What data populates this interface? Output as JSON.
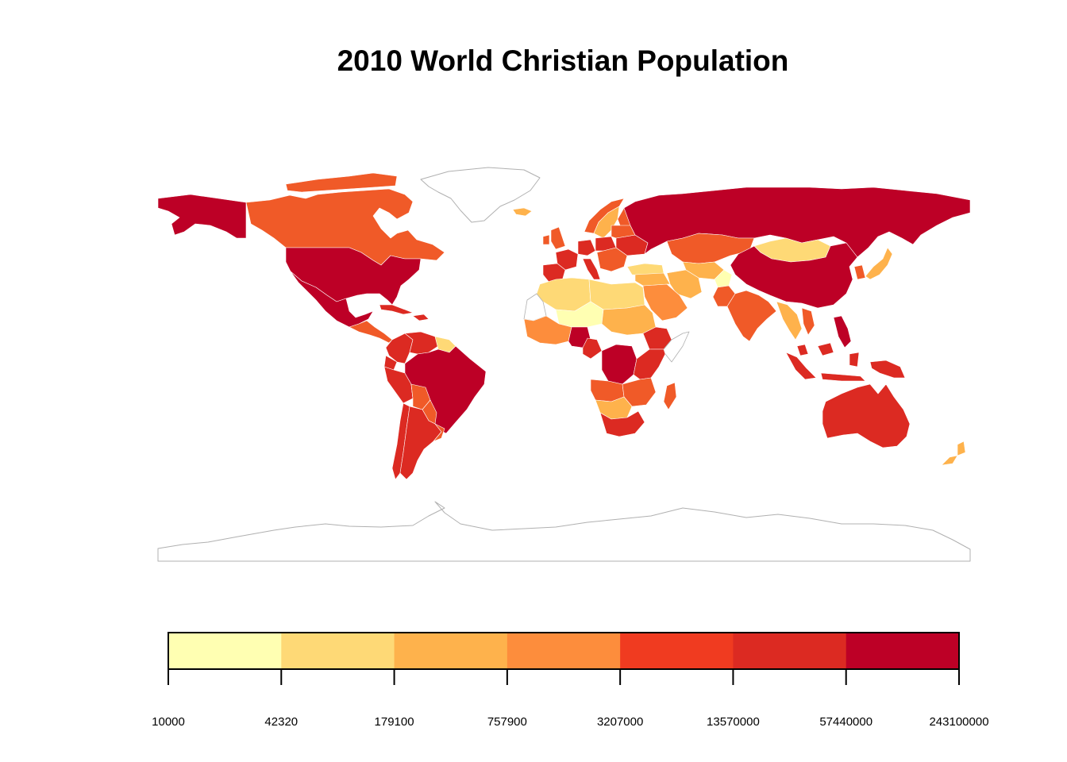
{
  "title": "2010 World Christian Population",
  "legend": {
    "colors": [
      "#FFFFB2",
      "#FED976",
      "#FEB24C",
      "#FD8D3C",
      "#F03B20",
      "#DC2A22",
      "#BD0026"
    ],
    "breaks": [
      "10000",
      "42320",
      "179100",
      "757900",
      "3207000",
      "13570000",
      "57440000",
      "243100000"
    ]
  },
  "map": {
    "projection": "equirectangular",
    "border_color": "#ffffff",
    "coastline_color": "#b0b0b0",
    "no_data_color": "#ffffff",
    "regions": [
      {
        "name": "Russia",
        "class": 6
      },
      {
        "name": "United States",
        "class": 6
      },
      {
        "name": "Mexico",
        "class": 6
      },
      {
        "name": "Brazil",
        "class": 6
      },
      {
        "name": "China",
        "class": 6
      },
      {
        "name": "Nigeria",
        "class": 6
      },
      {
        "name": "DR Congo",
        "class": 6
      },
      {
        "name": "Philippines",
        "class": 6
      },
      {
        "name": "Canada",
        "class": 4
      },
      {
        "name": "Australia",
        "class": 5
      },
      {
        "name": "Colombia",
        "class": 5
      },
      {
        "name": "Argentina",
        "class": 5
      },
      {
        "name": "South Africa",
        "class": 5
      },
      {
        "name": "India",
        "class": 4
      },
      {
        "name": "Mongolia",
        "class": 1
      },
      {
        "name": "Greenland",
        "class": 0
      }
    ]
  }
}
